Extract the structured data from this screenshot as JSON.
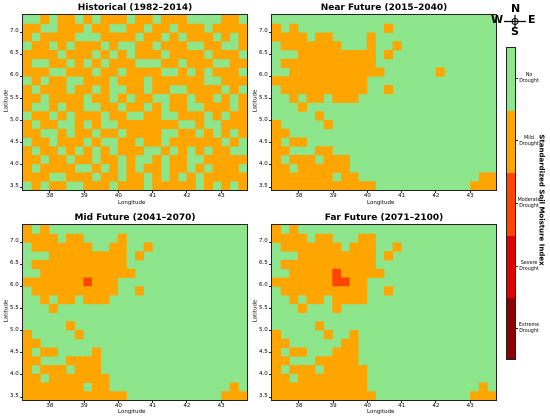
{
  "panels": [
    {
      "title": "Historical (1982–2014)",
      "xlabel": "Longitude",
      "ylabel": "Latitude"
    },
    {
      "title": "Near Future (2015–2040)",
      "xlabel": "Longitude",
      "ylabel": "Latitude"
    },
    {
      "title": "Mid Future (2041–2070)",
      "xlabel": "Longitude",
      "ylabel": "Latitude"
    },
    {
      "title": "Far Future (2071–2100)",
      "xlabel": "Longitude",
      "ylabel": "Latitude"
    }
  ],
  "x_ticks": [
    "38",
    "39",
    "40",
    "41",
    "42",
    "43"
  ],
  "y_ticks": [
    "7.0",
    "6.5",
    "6.0",
    "5.5",
    "5.0",
    "4.5",
    "4.0",
    "3.5"
  ],
  "compass": {
    "n": "N",
    "s": "S",
    "e": "E",
    "w": "W"
  },
  "colorbar": {
    "title": "Standardized Soil Moisture Index",
    "classes": [
      {
        "label": "No Drought",
        "color": "#8ee68c"
      },
      {
        "label": "Mild Drought",
        "color": "#ffa500"
      },
      {
        "label": "Moderate Drought",
        "color": "#ff4500"
      },
      {
        "label": "Severe Drought",
        "color": "#e00000"
      },
      {
        "label": "Extreme Drought",
        "color": "#8b0000"
      }
    ]
  },
  "chart_data": {
    "type": "heatmap",
    "extent": {
      "lon": [
        37.2,
        43.8
      ],
      "lat": [
        3.4,
        7.4
      ]
    },
    "legend": "right",
    "grid": true,
    "maps": [
      {
        "name": "Historical (1982–2014)",
        "rows": [
          "00101101011101101110000110",
          "11001110110011011011101111",
          "10111100011110110101110101",
          "01101011101001101110011001",
          "11110111010101110111101110",
          "10011010101110001101110011",
          "11100111011011110010101110",
          "01011001110111011111100111",
          "10111011010011011001111010",
          "11011110110101100110110101",
          "10010110011011010110011101",
          "01101011101100110011101011",
          "10110010100111111100100111",
          "11001011011011110011010101",
          "01101110100110110111111010",
          "10110101010111001010101100",
          "11011011011010010110011111",
          "10111100101010110110101110",
          "11100111011011010101011111",
          "01011001110111011111010101"
        ]
      },
      {
        "name": "Near Future (2015–2040)",
        "rows": [
          "00000000000000000000000000",
          "10100000000001000000000000",
          "11110110000100000000000000",
          "01111111000100100000000000",
          "00011111111101000000000000",
          "01111111111100000000000000",
          "00111111111110000001000000",
          "11111111111000000000000000",
          "01111111111001000000000000",
          "00101101110000000000000000",
          "00010000000000000000000000",
          "00000100000000000000000000",
          "10000010000000000000000000",
          "11000000000000000000000000",
          "10110000000000000000000000",
          "11000110000000000000000000",
          "10111011100000000000000000",
          "11011111100000000000000000",
          "11111110110000000000000011",
          "11111111111100000000000111"
        ]
      },
      {
        "name": "Mid Future (2041–2070)",
        "rows": [
          "10100000000000000000000000",
          "11110110000100000000000000",
          "01111111001100100000000000",
          "00011111111101000000000000",
          "01111111111100000000000000",
          "00111111111110000000000000",
          "11111112111000000000000000",
          "01111111111001000000000000",
          "00101101110000000000000000",
          "00010000000000000000000000",
          "00000000000000000000000000",
          "00000100000000000000000000",
          "10000010000000000000000000",
          "11000000000000000000000000",
          "10110000100000000000000000",
          "11000111100000000000000000",
          "10111011100000000000000000",
          "11011111110000000000000000",
          "11111110110000000000000010",
          "11111111111100000000000111"
        ]
      },
      {
        "name": "Far Future (2071–2100)",
        "rows": [
          "10100000000000000000000000",
          "11110110001100000000000000",
          "01111111011100100000000000",
          "00011111111101000000000000",
          "01111111111100000000000000",
          "00111112111110000000000000",
          "11111112211000000000000000",
          "01111111111001000000000000",
          "00101101111000000000000000",
          "00010001000000000000000000",
          "00000000000000000000000000",
          "00000100000000000000000000",
          "10000010010000000000000000",
          "11000000110000000000000000",
          "10110001110000000000000000",
          "11000111110000000000000000",
          "10111011111000000000000000",
          "11011111111000000000000000",
          "11111111111000000000000010",
          "11111111111100000000000111"
        ]
      }
    ]
  }
}
